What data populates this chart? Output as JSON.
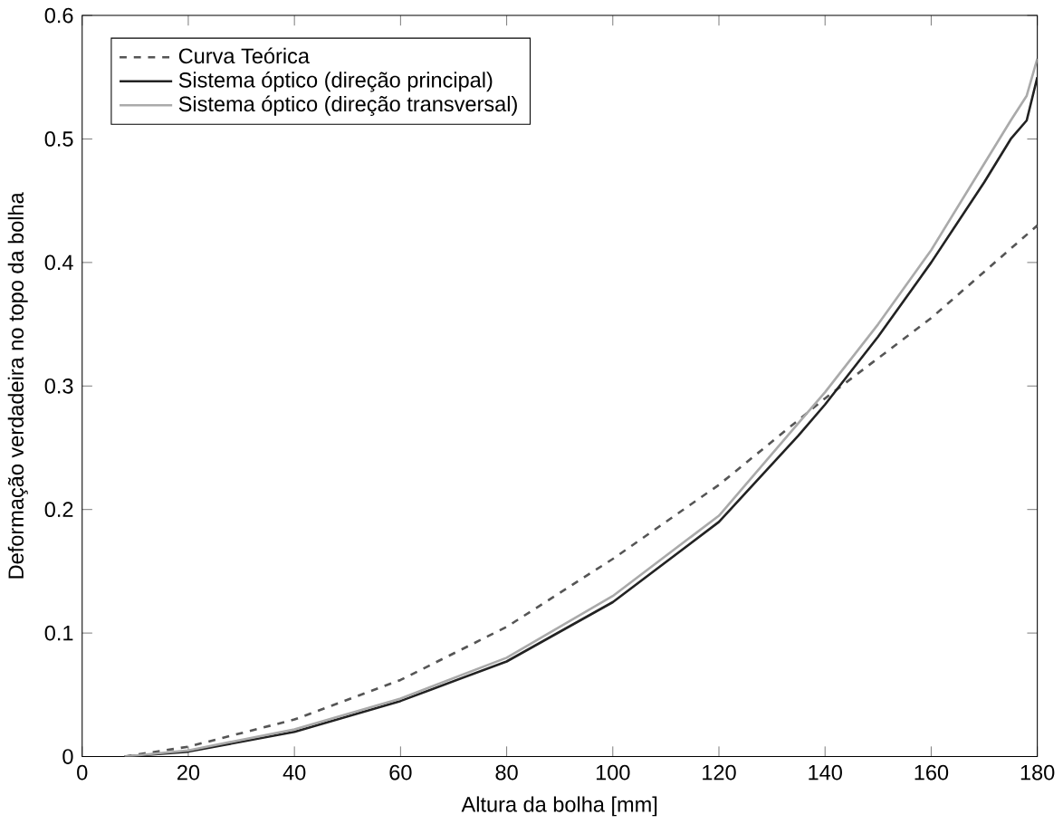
{
  "chart_data": {
    "type": "line",
    "xlabel": "Altura da bolha [mm]",
    "ylabel": "Deformação verdadeira no topo da bolha",
    "xlim": [
      0,
      180
    ],
    "ylim": [
      0,
      0.6
    ],
    "xticks": [
      0,
      20,
      40,
      60,
      80,
      100,
      120,
      140,
      160,
      180
    ],
    "yticks": [
      0,
      0.1,
      0.2,
      0.3,
      0.4,
      0.5,
      0.6
    ],
    "grid": false,
    "legend": "top left",
    "series": [
      {
        "name": "Curva Teórica",
        "color": "#555555",
        "line_style": "dashed",
        "x": [
          8,
          20,
          40,
          60,
          80,
          100,
          120,
          140,
          160,
          180
        ],
        "values": [
          0.0,
          0.008,
          0.03,
          0.062,
          0.105,
          0.16,
          0.22,
          0.29,
          0.355,
          0.43
        ]
      },
      {
        "name": "Sistema óptico (direção principal)",
        "color": "#222222",
        "line_style": "solid",
        "x": [
          8,
          20,
          40,
          60,
          80,
          100,
          120,
          135,
          140,
          150,
          160,
          170,
          175,
          178,
          180
        ],
        "values": [
          0.0,
          0.004,
          0.02,
          0.045,
          0.077,
          0.125,
          0.19,
          0.26,
          0.285,
          0.34,
          0.4,
          0.465,
          0.5,
          0.515,
          0.55
        ]
      },
      {
        "name": "Sistema óptico (direção transversal)",
        "color": "#aaaaaa",
        "line_style": "solid",
        "x": [
          8,
          20,
          40,
          60,
          80,
          100,
          120,
          135,
          140,
          150,
          160,
          170,
          175,
          178,
          180
        ],
        "values": [
          0.0,
          0.005,
          0.022,
          0.047,
          0.08,
          0.13,
          0.195,
          0.27,
          0.295,
          0.35,
          0.41,
          0.48,
          0.515,
          0.535,
          0.565
        ]
      }
    ]
  }
}
